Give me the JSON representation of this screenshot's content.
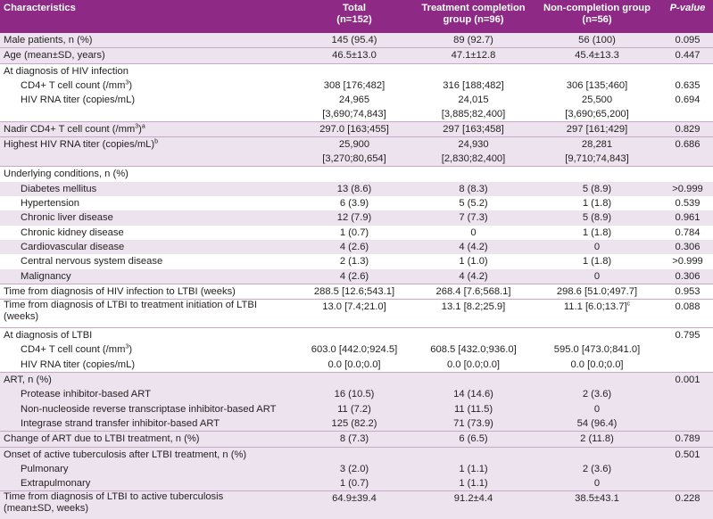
{
  "headers": {
    "characteristics": "Characteristics",
    "total": "Total",
    "total_n": "(n=152)",
    "completion": "Treatment completion",
    "completion_n": "group (n=96)",
    "noncompletion": "Non-completion group",
    "noncompletion_n": "(n=56)",
    "pvalue": "P-value"
  },
  "rows": {
    "male": {
      "label": "Male patients, n (%)",
      "total": "145 (95.4)",
      "comp": "89 (92.7)",
      "non": "56 (100)",
      "p": "0.095"
    },
    "age": {
      "label": "Age (mean±SD, years)",
      "total": "46.5±13.0",
      "comp": "47.1±12.8",
      "non": "45.4±13.3",
      "p": "0.447"
    },
    "hiv_dx": {
      "label": "At diagnosis of HIV infection"
    },
    "cd4_dx": {
      "label": "CD4+ T cell count (/mm",
      "sup": "3",
      "tail": ")",
      "total": "308 [176;482]",
      "comp": "316 [188;482]",
      "non": "306 [135;460]",
      "p": "0.635"
    },
    "rna_dx": {
      "label": "HIV RNA titer (copies/mL)",
      "total1": "24,965",
      "total2": "[3,690;74,843]",
      "comp1": "24,015",
      "comp2": "[3,885;82,400]",
      "non1": "25,500",
      "non2": "[3,690;65,200]",
      "p": "0.694"
    },
    "nadir": {
      "label": "Nadir CD4+ T cell count (/mm",
      "sup": "3",
      "tail": ")",
      "sup2": "a",
      "total": "297.0 [163;455]",
      "comp": "297 [163;458]",
      "non": "297 [161;429]",
      "p": "0.829"
    },
    "highest": {
      "label": "Highest HIV RNA titer (copies/mL)",
      "sup": "b",
      "total1": "25,900",
      "total2": "[3,270;80,654]",
      "comp1": "24,930",
      "comp2": "[2,830;82,400]",
      "non1": "28,281",
      "non2": "[9,710;74,843]",
      "p": "0.686"
    },
    "underlying": {
      "label": "Underlying conditions, n (%)"
    },
    "diabetes": {
      "label": "Diabetes mellitus",
      "total": "13 (8.6)",
      "comp": "8 (8.3)",
      "non": "5 (8.9)",
      "p": ">0.999"
    },
    "hypertension": {
      "label": "Hypertension",
      "total": "6 (3.9)",
      "comp": "5 (5.2)",
      "non": "1 (1.8)",
      "p": "0.539"
    },
    "liver": {
      "label": "Chronic liver disease",
      "total": "12 (7.9)",
      "comp": "7 (7.3)",
      "non": "5 (8.9)",
      "p": "0.961"
    },
    "kidney": {
      "label": "Chronic kidney disease",
      "total": "1 (0.7)",
      "comp": "0",
      "non": "1 (1.8)",
      "p": "0.784"
    },
    "cardio": {
      "label": "Cardiovascular disease",
      "total": "4 (2.6)",
      "comp": "4 (4.2)",
      "non": "0",
      "p": "0.306"
    },
    "cns": {
      "label": "Central nervous system disease",
      "total": "2 (1.3)",
      "comp": "1 (1.0)",
      "non": "1 (1.8)",
      "p": ">0.999"
    },
    "malignancy": {
      "label": "Malignancy",
      "total": "4 (2.6)",
      "comp": "4 (4.2)",
      "non": "0",
      "p": "0.306"
    },
    "time_hiv_ltbi": {
      "label": "Time from diagnosis of HIV infection to LTBI (weeks)",
      "total": "288.5 [12.6;543.1]",
      "comp": "268.4 [7.6;568.1]",
      "non": "298.6 [51.0;497.7]",
      "p": "0.953"
    },
    "time_ltbi_tx": {
      "label": "Time from diagnosis of LTBI to treatment initiation of LTBI (weeks)",
      "total": "13.0 [7.4;21.0]",
      "comp": "13.1 [8.2;25.9]",
      "non": "11.1 [6.0;13.7]",
      "sup": "c",
      "p": "0.088"
    },
    "ltbi_dx": {
      "label": "At diagnosis of LTBI",
      "p": "0.795"
    },
    "cd4_ltbi": {
      "label": "CD4+ T cell count (/mm",
      "sup": "3",
      "tail": ")",
      "total": "603.0 [442.0;924.5]",
      "comp": "608.5 [432.0;936.0]",
      "non": "595.0 [473.0;841.0]"
    },
    "rna_ltbi": {
      "label": "HIV RNA titer (copies/mL)",
      "total": "0.0 [0.0;0.0]",
      "comp": "0.0 [0.0;0.0]",
      "non": "0.0 [0.0;0.0]"
    },
    "art": {
      "label": "ART, n (%)",
      "p": "0.001"
    },
    "pi": {
      "label": "Protease inhibitor-based ART",
      "total": "16 (10.5)",
      "comp": "14 (14.6)",
      "non": "2 (3.6)"
    },
    "nnrti": {
      "label": "Non-nucleoside reverse transcriptase inhibitor-based ART",
      "total": "11 (7.2)",
      "comp": "11 (11.5)",
      "non": "0"
    },
    "insti": {
      "label": "Integrase strand transfer inhibitor-based ART",
      "total": "125 (82.2)",
      "comp": "71 (73.9)",
      "non": "54 (96.4)"
    },
    "change_art": {
      "label": "Change of ART due to LTBI treatment, n (%)",
      "total": "8 (7.3)",
      "comp": "6 (6.5)",
      "non": "2 (11.8)",
      "p": "0.789"
    },
    "onset": {
      "label": "Onset of active tuberculosis after LTBI treatment, n (%)",
      "p": "0.501"
    },
    "pulmonary": {
      "label": "Pulmonary",
      "total": "3 (2.0)",
      "comp": "1 (1.1)",
      "non": "2 (3.6)"
    },
    "extrapulmonary": {
      "label": "Extrapulmonary",
      "total": "1 (0.7)",
      "comp": "1 (1.1)",
      "non": "0"
    },
    "time_ltbi_tb": {
      "label": "Time from diagnosis of LTBI to active tuberculosis",
      "label2": "(mean±SD, weeks)",
      "total": "64.9±39.4",
      "comp": "91.2±4.4",
      "non": "38.5±43.1",
      "p": "0.228"
    }
  }
}
